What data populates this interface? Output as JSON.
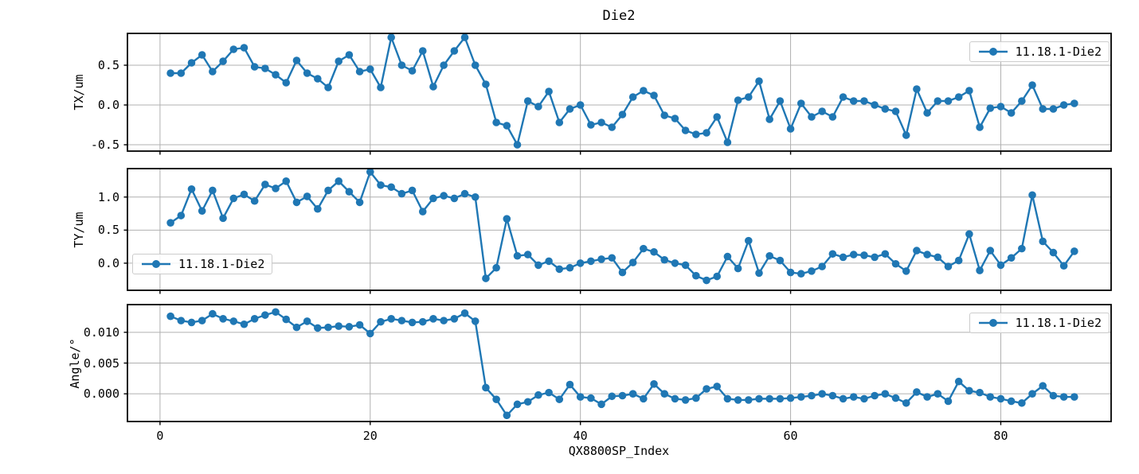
{
  "colors": {
    "line": "#1f77b4",
    "grid": "#b0b0b0",
    "spine": "#000000",
    "legend_border": "#cccccc",
    "background": "#ffffff",
    "text": "#000000"
  },
  "chart_data": {
    "type": "line",
    "title": "Die2",
    "xlabel": "QX8800SP_Index",
    "legend_label": "11.18.1-Die2",
    "grid": true,
    "marker": "circle",
    "x_start": 1,
    "n_points": 87,
    "xticks": [
      0,
      20,
      40,
      60,
      80
    ],
    "xtick_labels": [
      "0",
      "20",
      "40",
      "60",
      "80"
    ],
    "xlim": [
      -3.1,
      90.5
    ],
    "subplots": [
      {
        "ylabel": "TX/um",
        "ytick_labels": [
          "0.5",
          "0.0",
          "-0.5"
        ],
        "ytick_values": [
          0.5,
          0.0,
          -0.5
        ],
        "ylim": [
          -0.58,
          0.9
        ],
        "legend": {
          "label": "11.18.1-Die2",
          "position": "upper right"
        },
        "series": [
          {
            "name": "11.18.1-Die2",
            "values": [
              0.4,
              0.4,
              0.53,
              0.63,
              0.42,
              0.55,
              0.7,
              0.72,
              0.48,
              0.46,
              0.38,
              0.28,
              0.56,
              0.4,
              0.33,
              0.22,
              0.55,
              0.63,
              0.42,
              0.45,
              0.22,
              0.85,
              0.5,
              0.43,
              0.68,
              0.23,
              0.5,
              0.68,
              0.85,
              0.5,
              0.26,
              -0.22,
              -0.26,
              -0.5,
              0.05,
              -0.02,
              0.17,
              -0.22,
              -0.05,
              0.0,
              -0.25,
              -0.22,
              -0.28,
              -0.12,
              0.1,
              0.18,
              0.12,
              -0.13,
              -0.17,
              -0.32,
              -0.37,
              -0.35,
              -0.15,
              -0.47,
              0.06,
              0.1,
              0.3,
              -0.18,
              0.05,
              -0.3,
              0.02,
              -0.15,
              -0.08,
              -0.15,
              0.1,
              0.05,
              0.05,
              0.0,
              -0.05,
              -0.08,
              -0.38,
              0.2,
              -0.1,
              0.05,
              0.05,
              0.1,
              0.18,
              -0.28,
              -0.04,
              -0.02,
              -0.1,
              0.05,
              0.25,
              -0.05,
              -0.05,
              0.0,
              0.02
            ]
          }
        ]
      },
      {
        "ylabel": "TY/um",
        "ytick_labels": [
          "1.0",
          "0.5",
          "0.0"
        ],
        "ytick_values": [
          1.0,
          0.5,
          0.0
        ],
        "ylim": [
          -0.41,
          1.43
        ],
        "legend": {
          "label": "11.18.1-Die2",
          "position": "lower left"
        },
        "series": [
          {
            "name": "11.18.1-Die2",
            "values": [
              0.61,
              0.72,
              1.12,
              0.79,
              1.1,
              0.68,
              0.98,
              1.04,
              0.94,
              1.19,
              1.13,
              1.24,
              0.92,
              1.01,
              0.82,
              1.1,
              1.24,
              1.08,
              0.92,
              1.38,
              1.18,
              1.15,
              1.05,
              1.1,
              0.78,
              0.98,
              1.02,
              0.98,
              1.05,
              1.0,
              -0.23,
              -0.07,
              0.67,
              0.11,
              0.13,
              -0.03,
              0.03,
              -0.09,
              -0.07,
              0.0,
              0.03,
              0.06,
              0.08,
              -0.14,
              0.01,
              0.22,
              0.17,
              0.05,
              0.0,
              -0.03,
              -0.19,
              -0.26,
              -0.2,
              0.1,
              -0.08,
              0.34,
              -0.15,
              0.11,
              0.04,
              -0.14,
              -0.16,
              -0.12,
              -0.05,
              0.14,
              0.09,
              0.13,
              0.12,
              0.09,
              0.14,
              -0.01,
              -0.12,
              0.19,
              0.13,
              0.09,
              -0.05,
              0.04,
              0.44,
              -0.11,
              0.19,
              -0.03,
              0.08,
              0.22,
              1.03,
              0.33,
              0.16,
              -0.04,
              0.18
            ]
          }
        ]
      },
      {
        "ylabel": "Angle/°",
        "ytick_labels": [
          "0.010",
          "0.005",
          "0.000"
        ],
        "ytick_values": [
          0.01,
          0.005,
          0.0
        ],
        "ylim": [
          -0.0045,
          0.0145
        ],
        "legend": {
          "label": "11.18.1-Die2",
          "position": "upper right"
        },
        "series": [
          {
            "name": "11.18.1-Die2",
            "values": [
              0.0126,
              0.0119,
              0.0116,
              0.0119,
              0.013,
              0.0122,
              0.0118,
              0.0113,
              0.0122,
              0.0128,
              0.0133,
              0.0121,
              0.0108,
              0.0118,
              0.0107,
              0.0108,
              0.011,
              0.0109,
              0.0112,
              0.0098,
              0.0117,
              0.0122,
              0.0119,
              0.0116,
              0.0117,
              0.0122,
              0.0119,
              0.0122,
              0.0131,
              0.0118,
              0.001,
              -0.0009,
              -0.0035,
              -0.0017,
              -0.0013,
              -0.0002,
              0.0002,
              -0.0009,
              0.0015,
              -0.0005,
              -0.0007,
              -0.0017,
              -0.0004,
              -0.0003,
              0.0,
              -0.0008,
              0.0016,
              0.0,
              -0.0008,
              -0.001,
              -0.0007,
              0.0008,
              0.0012,
              -0.0008,
              -0.001,
              -0.001,
              -0.0008,
              -0.0008,
              -0.0008,
              -0.0007,
              -0.0005,
              -0.0003,
              0.0,
              -0.0003,
              -0.0008,
              -0.0005,
              -0.0008,
              -0.0003,
              0.0,
              -0.0007,
              -0.0015,
              0.0003,
              -0.0005,
              0.0,
              -0.0012,
              0.002,
              0.0005,
              0.0002,
              -0.0005,
              -0.0008,
              -0.0012,
              -0.0015,
              0.0,
              0.0013,
              -0.0003,
              -0.0005,
              -0.0005
            ]
          }
        ]
      }
    ]
  }
}
